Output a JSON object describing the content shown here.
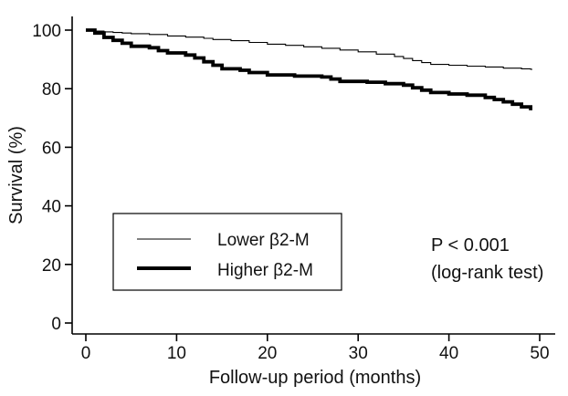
{
  "chart_data": {
    "type": "line",
    "title": "",
    "xlabel": "Follow-up period (months)",
    "ylabel": "Survival (%)",
    "xlim": [
      0,
      50
    ],
    "ylim": [
      0,
      100
    ],
    "xticks": [
      0,
      10,
      20,
      30,
      40,
      50
    ],
    "yticks": [
      0,
      20,
      40,
      60,
      80,
      100
    ],
    "grid": false,
    "legend_position": "center-left",
    "series": [
      {
        "name": "Lower β2-M",
        "style": "thin",
        "color": "#000000",
        "steps": [
          [
            0,
            100
          ],
          [
            1,
            99.7
          ],
          [
            2,
            99.4
          ],
          [
            3,
            99.2
          ],
          [
            4,
            99.0
          ],
          [
            5,
            98.8
          ],
          [
            7,
            98.5
          ],
          [
            9,
            98.0
          ],
          [
            11,
            97.6
          ],
          [
            13,
            97.2
          ],
          [
            14,
            96.8
          ],
          [
            16,
            96.4
          ],
          [
            18,
            95.8
          ],
          [
            20,
            95.2
          ],
          [
            22,
            94.8
          ],
          [
            24,
            94.3
          ],
          [
            26,
            93.8
          ],
          [
            28,
            93.2
          ],
          [
            30,
            92.6
          ],
          [
            32,
            91.8
          ],
          [
            34,
            91.0
          ],
          [
            35,
            90.3
          ],
          [
            36,
            89.6
          ],
          [
            37,
            88.9
          ],
          [
            38,
            88.3
          ],
          [
            40,
            88.0
          ],
          [
            42,
            87.7
          ],
          [
            44,
            87.4
          ],
          [
            46,
            87.0
          ],
          [
            48,
            86.8
          ],
          [
            49,
            86.6
          ]
        ]
      },
      {
        "name": "Higher β2-M",
        "style": "thick",
        "color": "#000000",
        "steps": [
          [
            0,
            100
          ],
          [
            1,
            99.0
          ],
          [
            2,
            97.5
          ],
          [
            3,
            96.5
          ],
          [
            4,
            95.5
          ],
          [
            5,
            94.5
          ],
          [
            7,
            94.0
          ],
          [
            8,
            93.0
          ],
          [
            9,
            92.2
          ],
          [
            11,
            91.5
          ],
          [
            12,
            90.5
          ],
          [
            13,
            89.2
          ],
          [
            14,
            88.0
          ],
          [
            15,
            86.8
          ],
          [
            17,
            86.3
          ],
          [
            18,
            85.5
          ],
          [
            20,
            84.7
          ],
          [
            23,
            84.3
          ],
          [
            26,
            84.0
          ],
          [
            27,
            83.3
          ],
          [
            28,
            82.5
          ],
          [
            31,
            82.2
          ],
          [
            33,
            81.7
          ],
          [
            35,
            81.2
          ],
          [
            36,
            80.3
          ],
          [
            37,
            79.5
          ],
          [
            38,
            78.7
          ],
          [
            40,
            78.2
          ],
          [
            42,
            77.8
          ],
          [
            44,
            77.0
          ],
          [
            45,
            76.3
          ],
          [
            46,
            75.5
          ],
          [
            47,
            74.7
          ],
          [
            48,
            73.8
          ],
          [
            49,
            73.2
          ]
        ]
      }
    ],
    "annotations": [
      {
        "text": "P < 0.001"
      },
      {
        "text": "(log-rank test)"
      }
    ]
  },
  "legend": {
    "items": [
      {
        "label": "Lower β2-M"
      },
      {
        "label": "Higher β2-M"
      }
    ]
  }
}
